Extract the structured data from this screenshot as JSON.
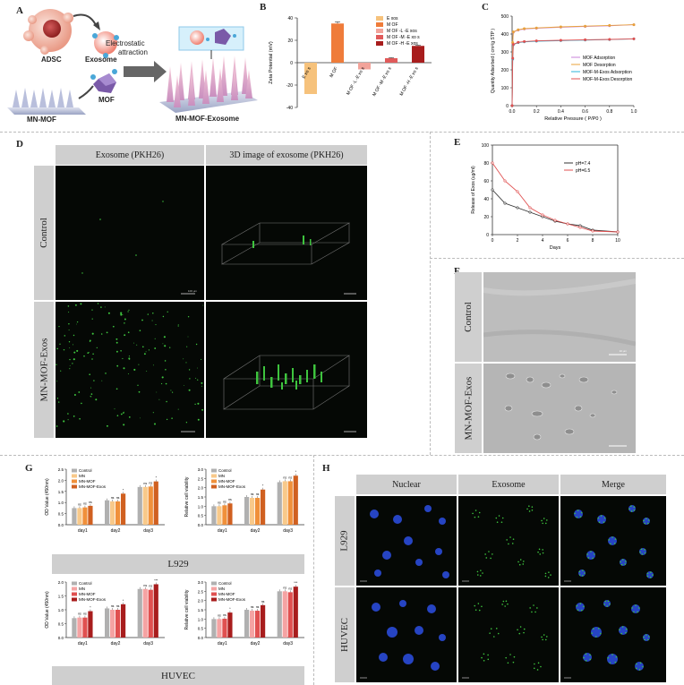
{
  "panels": {
    "a": "A",
    "b": "B",
    "c": "C",
    "d": "D",
    "e": "E",
    "f": "F",
    "g": "G",
    "h": "H"
  },
  "panel_a": {
    "adsc": "ADSC",
    "exosome": "Exosome",
    "mn_mof": "MN-MOF",
    "mof": "MOF",
    "electrostatic": "Electrostatic",
    "attraction": "attraction",
    "product": "MN-MOF-Exosome"
  },
  "panel_d": {
    "col1": "Exosome (PKH26)",
    "col2": "3D image of exosome (PKH26)",
    "row1": "Control",
    "row2": "MN-MOF-Exos",
    "scale": "100 μm"
  },
  "panel_f": {
    "row1": "Control",
    "row2": "MN-MOF-Exos",
    "scale": "10 μm"
  },
  "panel_g": {
    "cell1": "L929",
    "cell2": "HUVEC"
  },
  "panel_h": {
    "col1": "Nuclear",
    "col2": "Exosome",
    "col3": "Merge",
    "row1": "L929",
    "row2": "HUVEC"
  },
  "colors": {
    "red": "#c0392b",
    "orange": "#f08030",
    "black": "#333333",
    "green": "#3ec43e",
    "blue": "#2a4bd8"
  },
  "chart_data": [
    {
      "id": "B",
      "type": "bar",
      "categories": [
        "E xo s",
        "M OF",
        "M OF -L -E xo s",
        "M OF -M -E xo s",
        "M OF -H -E xo s"
      ],
      "values": [
        -28,
        35,
        -6,
        4,
        15
      ],
      "errors": [
        0,
        1.5,
        0,
        0.5,
        0.6
      ],
      "colors": [
        "#f6c27c",
        "#ef7c3a",
        "#f2a39a",
        "#e05a5a",
        "#a81d1d"
      ],
      "legend": [
        "E xos",
        "M OF",
        "M OF -L -E xos",
        "M OF -M -E xo s",
        "M OF -H -E xos"
      ],
      "ylabel": "Zeta Potential (mV)",
      "ylim": [
        -40,
        40
      ],
      "yticks": [
        -40,
        -20,
        0,
        20,
        40
      ]
    },
    {
      "id": "C",
      "type": "line",
      "xlabel": "Relative Pressure ( P/P0 )",
      "ylabel": "Quantity Adsorbed ( cm³/g STP )",
      "xlim": [
        0,
        1
      ],
      "ylim": [
        0,
        500
      ],
      "xticks": [
        "0.0",
        "0.2",
        "0.4",
        "0.6",
        "0.8",
        "1.0"
      ],
      "yticks": [
        "0",
        "100",
        "200",
        "300",
        "400",
        "500"
      ],
      "series": [
        {
          "name": "MOF Adsorption",
          "color": "#c980d8",
          "x": [
            0,
            0.005,
            0.01,
            0.05,
            0.1,
            0.2,
            0.4,
            0.6,
            0.8,
            1.0
          ],
          "y": [
            0,
            350,
            410,
            422,
            428,
            432,
            438,
            442,
            446,
            452
          ]
        },
        {
          "name": "MOF Desorption",
          "color": "#e8a23a",
          "x": [
            0,
            0.005,
            0.01,
            0.05,
            0.1,
            0.2,
            0.4,
            0.6,
            0.8,
            1.0
          ],
          "y": [
            0,
            352,
            412,
            424,
            430,
            434,
            440,
            444,
            448,
            452
          ]
        },
        {
          "name": "MOF-M-Exos Adsorption",
          "color": "#2bb3d8",
          "x": [
            0,
            0.005,
            0.01,
            0.05,
            0.1,
            0.2,
            0.4,
            0.6,
            0.8,
            1.0
          ],
          "y": [
            0,
            260,
            340,
            352,
            356,
            360,
            363,
            366,
            369,
            373
          ]
        },
        {
          "name": "MOF-M-Exos Desorption",
          "color": "#e05050",
          "x": [
            0,
            0.005,
            0.01,
            0.05,
            0.1,
            0.2,
            0.4,
            0.6,
            0.8,
            1.0
          ],
          "y": [
            0,
            265,
            342,
            354,
            358,
            362,
            365,
            368,
            370,
            373
          ]
        }
      ]
    },
    {
      "id": "E",
      "type": "line",
      "xlabel": "Days",
      "ylabel": "Release of Exos (ug/ml)",
      "xlim": [
        0,
        10
      ],
      "ylim": [
        0,
        100
      ],
      "xticks": [
        "0",
        "2",
        "4",
        "6",
        "8",
        "10"
      ],
      "yticks": [
        "0",
        "20",
        "40",
        "60",
        "80",
        "100"
      ],
      "series": [
        {
          "name": "pH=7.4",
          "color": "#333333",
          "x": [
            0,
            1,
            2,
            3,
            4,
            5,
            6,
            7,
            8,
            10
          ],
          "y": [
            50,
            35,
            30,
            25,
            20,
            15,
            12,
            10,
            5,
            3
          ]
        },
        {
          "name": "pH=6.5",
          "color": "#e05050",
          "x": [
            0,
            1,
            2,
            3,
            4,
            5,
            6,
            7,
            8,
            10
          ],
          "y": [
            80,
            60,
            48,
            30,
            22,
            16,
            12,
            8,
            4,
            3
          ]
        }
      ]
    },
    {
      "id": "G1",
      "type": "bar",
      "cell": "L929",
      "categories": [
        "day1",
        "day2",
        "day3"
      ],
      "ylabel": "OD Value (450nm)",
      "ylim": [
        0,
        2.5
      ],
      "yticks": [
        "0.0",
        "0.5",
        "1.0",
        "1.5",
        "2.0",
        "2.5"
      ],
      "series": [
        {
          "name": "Control",
          "color": "#b0b0b0",
          "values": [
            0.75,
            1.1,
            1.7
          ]
        },
        {
          "name": "MN",
          "color": "#f8c98a",
          "values": [
            0.75,
            1.05,
            1.7
          ]
        },
        {
          "name": "MN-MOF",
          "color": "#f0903a",
          "values": [
            0.78,
            1.05,
            1.72
          ]
        },
        {
          "name": "MN-MOF-Exos",
          "color": "#d06020",
          "values": [
            0.85,
            1.4,
            1.95
          ]
        }
      ],
      "marks": [
        "ns",
        "ns",
        "ns",
        "ns",
        "ns",
        "*",
        "ns",
        "ns",
        "*"
      ]
    },
    {
      "id": "G2",
      "type": "bar",
      "cell": "L929",
      "categories": [
        "day1",
        "day2",
        "day3"
      ],
      "ylabel": "Relative cell viability",
      "ylim": [
        0,
        3.0
      ],
      "yticks": [
        "0.0",
        "0.5",
        "1.0",
        "1.5",
        "2.0",
        "2.5",
        "3.0"
      ],
      "series": [
        {
          "name": "Control",
          "color": "#b0b0b0",
          "values": [
            1.0,
            1.5,
            2.3
          ]
        },
        {
          "name": "MN",
          "color": "#f8c98a",
          "values": [
            1.0,
            1.45,
            2.35
          ]
        },
        {
          "name": "MN-MOF",
          "color": "#f0903a",
          "values": [
            1.05,
            1.45,
            2.35
          ]
        },
        {
          "name": "MN-MOF-Exos",
          "color": "#d06020",
          "values": [
            1.15,
            1.9,
            2.65
          ]
        }
      ],
      "marks": [
        "ns",
        "ns",
        "ns",
        "ns",
        "ns",
        "*",
        "ns",
        "ns",
        "*"
      ]
    },
    {
      "id": "G3",
      "type": "bar",
      "cell": "HUVEC",
      "categories": [
        "day1",
        "day2",
        "day3"
      ],
      "ylabel": "OD Value (450nm)",
      "ylim": [
        0,
        2.0
      ],
      "yticks": [
        "0.0",
        "0.5",
        "1.0",
        "1.5",
        "2.0"
      ],
      "series": [
        {
          "name": "Control",
          "color": "#b0b0b0",
          "values": [
            0.7,
            1.05,
            1.75
          ]
        },
        {
          "name": "MN",
          "color": "#f5a3a3",
          "values": [
            0.72,
            1.0,
            1.75
          ]
        },
        {
          "name": "MN-MOF",
          "color": "#e05050",
          "values": [
            0.72,
            1.0,
            1.72
          ]
        },
        {
          "name": "MN-MOF-Exos",
          "color": "#a81d1d",
          "values": [
            0.95,
            1.2,
            1.92
          ]
        }
      ],
      "marks": [
        "ns",
        "ns",
        "*",
        "ns",
        "ns",
        "*",
        "ns",
        "ns",
        "***"
      ]
    },
    {
      "id": "G4",
      "type": "bar",
      "cell": "HUVEC",
      "categories": [
        "day1",
        "day2",
        "day3"
      ],
      "ylabel": "Relative cell viability",
      "ylim": [
        0,
        3.0
      ],
      "yticks": [
        "0.0",
        "0.5",
        "1.0",
        "1.5",
        "2.0",
        "2.5",
        "3.0"
      ],
      "series": [
        {
          "name": "Control",
          "color": "#b0b0b0",
          "values": [
            1.0,
            1.5,
            2.5
          ]
        },
        {
          "name": "MN",
          "color": "#f5a3a3",
          "values": [
            1.0,
            1.45,
            2.5
          ]
        },
        {
          "name": "MN-MOF",
          "color": "#e05050",
          "values": [
            1.02,
            1.45,
            2.45
          ]
        },
        {
          "name": "MN-MOF-Exos",
          "color": "#a81d1d",
          "values": [
            1.35,
            1.75,
            2.75
          ]
        }
      ],
      "marks": [
        "ns",
        "ns",
        "*",
        "ns",
        "ns",
        "ns",
        "ns",
        "ns",
        "***"
      ]
    }
  ]
}
